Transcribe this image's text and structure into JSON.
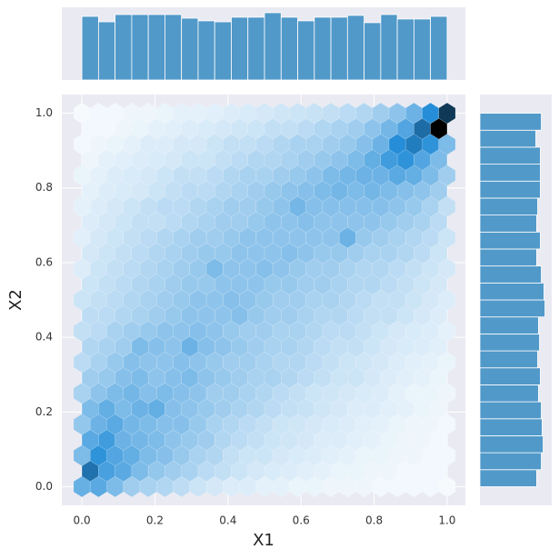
{
  "chart_data": [
    {
      "type": "hexbin",
      "xlabel": "X1",
      "ylabel": "X2",
      "gridsize": 22,
      "extent": [
        0,
        1,
        0,
        1
      ],
      "hue": 205,
      "saturation": 0.7,
      "grid": true,
      "xlim": [
        -0.055,
        1.05
      ],
      "ylim": [
        -0.05,
        1.05
      ],
      "xticks": [
        {
          "value": 0,
          "label": "0.0"
        },
        0.2,
        0.4,
        0.6,
        0.8,
        {
          "value": 1,
          "label": "1.0"
        }
      ],
      "yticks": [
        {
          "value": 0,
          "label": "0.0"
        },
        0.2,
        0.4,
        0.6,
        0.8,
        {
          "value": 1,
          "label": "1.0"
        }
      ],
      "counts": [
        [
          35,
          38,
          30,
          22,
          20,
          18,
          15,
          12,
          10,
          8,
          8,
          6,
          6,
          5,
          5,
          4,
          4,
          4,
          3,
          3,
          3,
          3,
          2
        ],
        [
          60,
          42,
          38,
          30,
          25,
          22,
          20,
          16,
          14,
          12,
          10,
          9,
          8,
          7,
          6,
          5,
          5,
          4,
          4,
          3,
          3,
          3
        ],
        [
          30,
          48,
          40,
          36,
          30,
          28,
          24,
          20,
          18,
          14,
          12,
          12,
          10,
          9,
          8,
          7,
          6,
          5,
          5,
          4,
          4,
          3,
          3
        ],
        [
          38,
          44,
          34,
          32,
          30,
          26,
          24,
          22,
          18,
          16,
          14,
          12,
          11,
          10,
          8,
          8,
          7,
          6,
          5,
          4,
          4,
          3
        ],
        [
          25,
          34,
          38,
          32,
          30,
          28,
          28,
          24,
          20,
          18,
          16,
          14,
          12,
          11,
          10,
          9,
          8,
          7,
          6,
          5,
          4,
          4,
          3
        ],
        [
          30,
          36,
          30,
          34,
          36,
          28,
          26,
          24,
          22,
          20,
          18,
          16,
          14,
          13,
          11,
          10,
          8,
          8,
          7,
          6,
          5,
          4
        ],
        [
          20,
          26,
          30,
          32,
          28,
          30,
          28,
          26,
          22,
          22,
          20,
          18,
          16,
          14,
          12,
          11,
          10,
          9,
          8,
          6,
          5,
          5,
          4
        ],
        [
          22,
          24,
          28,
          30,
          26,
          28,
          30,
          26,
          24,
          22,
          20,
          20,
          18,
          16,
          14,
          12,
          12,
          10,
          8,
          7,
          6,
          5
        ],
        [
          16,
          20,
          24,
          28,
          26,
          26,
          28,
          26,
          24,
          22,
          22,
          20,
          18,
          18,
          16,
          14,
          12,
          11,
          10,
          8,
          7,
          6,
          5
        ],
        [
          18,
          20,
          22,
          30,
          28,
          26,
          34,
          28,
          26,
          24,
          22,
          20,
          20,
          18,
          16,
          14,
          14,
          12,
          10,
          9,
          8,
          7
        ],
        [
          14,
          16,
          20,
          22,
          24,
          26,
          26,
          28,
          26,
          24,
          22,
          22,
          20,
          20,
          18,
          16,
          16,
          14,
          12,
          10,
          9,
          8,
          6
        ],
        [
          15,
          16,
          18,
          20,
          22,
          24,
          26,
          26,
          26,
          28,
          24,
          22,
          22,
          20,
          18,
          18,
          16,
          14,
          14,
          12,
          10,
          8
        ],
        [
          12,
          14,
          16,
          18,
          20,
          22,
          24,
          26,
          26,
          28,
          26,
          24,
          22,
          22,
          20,
          20,
          18,
          16,
          14,
          14,
          12,
          10,
          8
        ],
        [
          12,
          14,
          16,
          18,
          20,
          22,
          24,
          24,
          26,
          26,
          26,
          24,
          24,
          22,
          22,
          20,
          18,
          18,
          16,
          14,
          12,
          10
        ],
        [
          8,
          12,
          14,
          16,
          18,
          20,
          22,
          24,
          30,
          26,
          26,
          28,
          26,
          24,
          22,
          22,
          20,
          18,
          18,
          16,
          14,
          12,
          10
        ],
        [
          10,
          12,
          14,
          16,
          18,
          20,
          22,
          24,
          24,
          26,
          26,
          26,
          28,
          26,
          24,
          24,
          22,
          20,
          20,
          18,
          16,
          12
        ],
        [
          7,
          10,
          12,
          14,
          16,
          18,
          20,
          22,
          22,
          24,
          26,
          26,
          26,
          26,
          26,
          26,
          34,
          24,
          22,
          20,
          18,
          16,
          12
        ],
        [
          8,
          10,
          12,
          14,
          14,
          16,
          18,
          20,
          22,
          22,
          24,
          26,
          26,
          28,
          26,
          26,
          26,
          26,
          24,
          22,
          20,
          16
        ],
        [
          6,
          8,
          10,
          12,
          14,
          16,
          16,
          18,
          20,
          22,
          22,
          24,
          26,
          32,
          28,
          28,
          28,
          28,
          28,
          26,
          24,
          20,
          14
        ],
        [
          6,
          8,
          9,
          10,
          12,
          14,
          16,
          16,
          18,
          20,
          22,
          24,
          26,
          28,
          30,
          32,
          30,
          32,
          30,
          28,
          26,
          22
        ],
        [
          5,
          6,
          8,
          9,
          10,
          12,
          14,
          14,
          16,
          18,
          20,
          20,
          22,
          24,
          26,
          30,
          32,
          34,
          34,
          38,
          36,
          30,
          22
        ],
        [
          4,
          6,
          7,
          8,
          9,
          10,
          12,
          12,
          14,
          16,
          18,
          18,
          20,
          22,
          24,
          26,
          30,
          36,
          44,
          48,
          40,
          30
        ],
        [
          3,
          4,
          5,
          6,
          8,
          8,
          10,
          10,
          12,
          14,
          14,
          16,
          18,
          20,
          20,
          22,
          24,
          28,
          34,
          50,
          56,
          48,
          30
        ],
        [
          3,
          3,
          4,
          5,
          6,
          7,
          8,
          9,
          10,
          11,
          12,
          14,
          14,
          16,
          18,
          20,
          22,
          26,
          32,
          40,
          62,
          100
        ],
        [
          2,
          3,
          3,
          4,
          4,
          5,
          6,
          6,
          7,
          8,
          9,
          10,
          11,
          12,
          13,
          14,
          16,
          18,
          22,
          26,
          34,
          50,
          80
        ]
      ]
    },
    {
      "type": "histogram",
      "orientation": "vertical",
      "color": "#5199c9",
      "bins": [
        0,
        0.0455,
        0.0909,
        0.1364,
        0.1818,
        0.2273,
        0.2727,
        0.3182,
        0.3636,
        0.4091,
        0.4545,
        0.5,
        0.5455,
        0.5909,
        0.6364,
        0.6818,
        0.7273,
        0.7727,
        0.8182,
        0.8636,
        0.9091,
        0.9545,
        1
      ],
      "values": [
        455,
        416,
        468,
        468,
        468,
        468,
        442,
        423,
        416,
        449,
        449,
        481,
        449,
        423,
        449,
        449,
        462,
        410,
        468,
        436,
        436,
        455
      ],
      "xlim": [
        -0.055,
        1.05
      ],
      "ylim": [
        0,
        520
      ]
    },
    {
      "type": "histogram",
      "orientation": "horizontal",
      "color": "#5199c9",
      "bins": [
        0,
        0.0455,
        0.0909,
        0.1364,
        0.1818,
        0.2273,
        0.2727,
        0.3182,
        0.3636,
        0.4091,
        0.4545,
        0.5,
        0.5455,
        0.5909,
        0.6364,
        0.6818,
        0.7273,
        0.7727,
        0.8182,
        0.8636,
        0.9091,
        0.9545,
        1
      ],
      "values": [
        403,
        436,
        449,
        442,
        436,
        416,
        429,
        410,
        423,
        416,
        462,
        455,
        436,
        403,
        429,
        403,
        410,
        429,
        429,
        429,
        397,
        436
      ],
      "xlim": [
        0,
        510
      ],
      "ylim": [
        -0.05,
        1.05
      ]
    }
  ]
}
